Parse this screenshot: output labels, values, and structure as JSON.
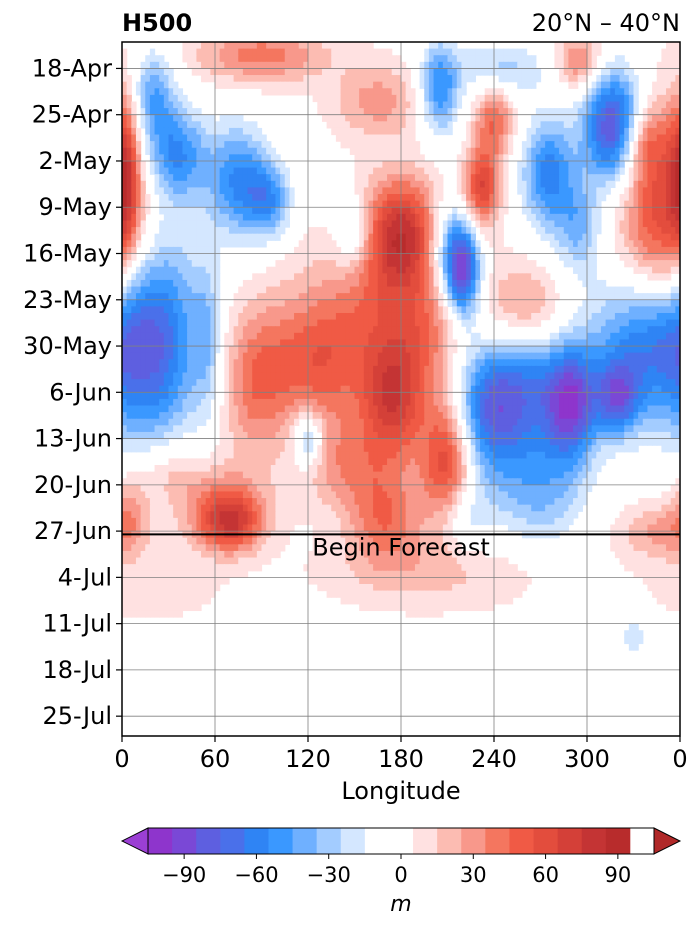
{
  "chart_data": [
    {
      "type": "heatmap",
      "title_left": "H500",
      "title_right": "20°N – 40°N",
      "xlabel": "Longitude",
      "x_ticks": [
        "0",
        "60",
        "120",
        "180",
        "240",
        "300",
        "0"
      ],
      "x_tick_values": [
        0,
        60,
        120,
        180,
        240,
        300,
        360
      ],
      "xlim": [
        0,
        360
      ],
      "y_ticks": [
        "18-Apr",
        "25-Apr",
        "2-May",
        "9-May",
        "16-May",
        "23-May",
        "30-May",
        "6-Jun",
        "13-Jun",
        "20-Jun",
        "27-Jun",
        "4-Jul",
        "11-Jul",
        "18-Jul",
        "25-Jul"
      ],
      "y_tick_days": [
        4,
        11,
        18,
        25,
        32,
        39,
        46,
        53,
        60,
        67,
        74,
        81,
        88,
        95,
        102
      ],
      "ylim_days": [
        0,
        105
      ],
      "forecast_start_day": 74.5,
      "annotation": "Begin Forecast",
      "grid": true,
      "units": "m",
      "anomaly_blobs": [
        {
          "lon": 20,
          "day": 8,
          "value": -45,
          "sx": 10,
          "sy": 5
        },
        {
          "lon": 35,
          "day": 17,
          "value": -55,
          "sx": 14,
          "sy": 5
        },
        {
          "lon": 75,
          "day": 21,
          "value": -55,
          "sx": 14,
          "sy": 6
        },
        {
          "lon": 95,
          "day": 24,
          "value": -45,
          "sx": 10,
          "sy": 4
        },
        {
          "lon": 2,
          "day": 20,
          "value": 55,
          "sx": 6,
          "sy": 8
        },
        {
          "lon": 90,
          "day": 2,
          "value": 40,
          "sx": 30,
          "sy": 3
        },
        {
          "lon": 165,
          "day": 9,
          "value": 30,
          "sx": 20,
          "sy": 4
        },
        {
          "lon": 205,
          "day": 7,
          "value": -55,
          "sx": 9,
          "sy": 5
        },
        {
          "lon": 240,
          "day": 12,
          "value": 45,
          "sx": 9,
          "sy": 4
        },
        {
          "lon": 232,
          "day": 22,
          "value": 65,
          "sx": 8,
          "sy": 4
        },
        {
          "lon": 245,
          "day": 4,
          "value": -30,
          "sx": 20,
          "sy": 3
        },
        {
          "lon": 295,
          "day": 3,
          "value": 40,
          "sx": 10,
          "sy": 3
        },
        {
          "lon": 275,
          "day": 20,
          "value": -60,
          "sx": 12,
          "sy": 6
        },
        {
          "lon": 295,
          "day": 28,
          "value": -35,
          "sx": 10,
          "sy": 5
        },
        {
          "lon": 318,
          "day": 13,
          "value": -95,
          "sx": 14,
          "sy": 6
        },
        {
          "lon": 350,
          "day": 28,
          "value": 70,
          "sx": 20,
          "sy": 12
        },
        {
          "lon": 335,
          "day": 15,
          "value": 40,
          "sx": 10,
          "sy": 4
        },
        {
          "lon": 180,
          "day": 29,
          "value": 75,
          "sx": 18,
          "sy": 6
        },
        {
          "lon": 150,
          "day": 29,
          "value": -35,
          "sx": 9,
          "sy": 4
        },
        {
          "lon": 210,
          "day": 31,
          "value": -45,
          "sx": 10,
          "sy": 5
        },
        {
          "lon": 220,
          "day": 35,
          "value": -90,
          "sx": 8,
          "sy": 5
        },
        {
          "lon": 20,
          "day": 45,
          "value": -70,
          "sx": 22,
          "sy": 12
        },
        {
          "lon": 170,
          "day": 40,
          "value": 30,
          "sx": 40,
          "sy": 8
        },
        {
          "lon": 260,
          "day": 41,
          "value": 35,
          "sx": 18,
          "sy": 5
        },
        {
          "lon": 125,
          "day": 49,
          "value": 45,
          "sx": 25,
          "sy": 7
        },
        {
          "lon": 190,
          "day": 46,
          "value": 25,
          "sx": 20,
          "sy": 6
        },
        {
          "lon": 340,
          "day": 45,
          "value": -70,
          "sx": 25,
          "sy": 8
        },
        {
          "lon": 255,
          "day": 52,
          "value": -60,
          "sx": 25,
          "sy": 7
        },
        {
          "lon": 235,
          "day": 58,
          "value": -45,
          "sx": 18,
          "sy": 7
        },
        {
          "lon": 290,
          "day": 55,
          "value": -75,
          "sx": 12,
          "sy": 6
        },
        {
          "lon": 320,
          "day": 54,
          "value": -60,
          "sx": 10,
          "sy": 4
        },
        {
          "lon": 85,
          "day": 52,
          "value": 35,
          "sx": 15,
          "sy": 8
        },
        {
          "lon": 55,
          "day": 45,
          "value": -25,
          "sx": 6,
          "sy": 8
        },
        {
          "lon": 175,
          "day": 55,
          "value": 60,
          "sx": 14,
          "sy": 6
        },
        {
          "lon": 210,
          "day": 63,
          "value": 70,
          "sx": 12,
          "sy": 7
        },
        {
          "lon": 145,
          "day": 64,
          "value": 30,
          "sx": 20,
          "sy": 5
        },
        {
          "lon": 65,
          "day": 70,
          "value": 35,
          "sx": 20,
          "sy": 4
        },
        {
          "lon": 70,
          "day": 73,
          "value": 55,
          "sx": 14,
          "sy": 3
        },
        {
          "lon": 170,
          "day": 72,
          "value": 40,
          "sx": 16,
          "sy": 5
        },
        {
          "lon": 270,
          "day": 68,
          "value": -35,
          "sx": 20,
          "sy": 6
        },
        {
          "lon": 220,
          "day": 72,
          "value": -25,
          "sx": 12,
          "sy": 4
        },
        {
          "lon": 30,
          "day": 65,
          "value": 25,
          "sx": 16,
          "sy": 4
        },
        {
          "lon": 5,
          "day": 70,
          "value": 25,
          "sx": 8,
          "sy": 4
        },
        {
          "lon": 120,
          "day": 60,
          "value": -45,
          "sx": 7,
          "sy": 3
        },
        {
          "lon": 350,
          "day": 74,
          "value": 30,
          "sx": 20,
          "sy": 3
        },
        {
          "lon": 20,
          "day": 82,
          "value": 12,
          "sx": 30,
          "sy": 4
        },
        {
          "lon": 200,
          "day": 80,
          "value": 18,
          "sx": 50,
          "sy": 4
        },
        {
          "lon": 330,
          "day": 90,
          "value": -22,
          "sx": 6,
          "sy": 3
        }
      ]
    },
    {
      "type": "colorbar",
      "label": "m",
      "levels": [
        -105,
        -95,
        -85,
        -75,
        -65,
        -55,
        -45,
        -35,
        -25,
        -15,
        -5,
        5,
        15,
        25,
        35,
        45,
        55,
        65,
        75,
        85,
        95,
        105
      ],
      "tick_values": [
        -90,
        -60,
        -30,
        0,
        30,
        60,
        90
      ],
      "tick_labels": [
        "−90",
        "−60",
        "−30",
        "0",
        "30",
        "60",
        "90"
      ],
      "colors": [
        "#8e35cc",
        "#7a48d6",
        "#5e5fe0",
        "#4a70ea",
        "#2f84f4",
        "#3a98ff",
        "#6fb0ff",
        "#a3ccff",
        "#d4e7ff",
        "#ffffff",
        "#ffffff",
        "#ffe1e1",
        "#fcbcb2",
        "#f8988b",
        "#f4765f",
        "#f05a45",
        "#e34d3d",
        "#d44038",
        "#c43434",
        "#b82c2c"
      ],
      "under_color": "#9b3fd4",
      "over_color": "#b02828"
    }
  ]
}
